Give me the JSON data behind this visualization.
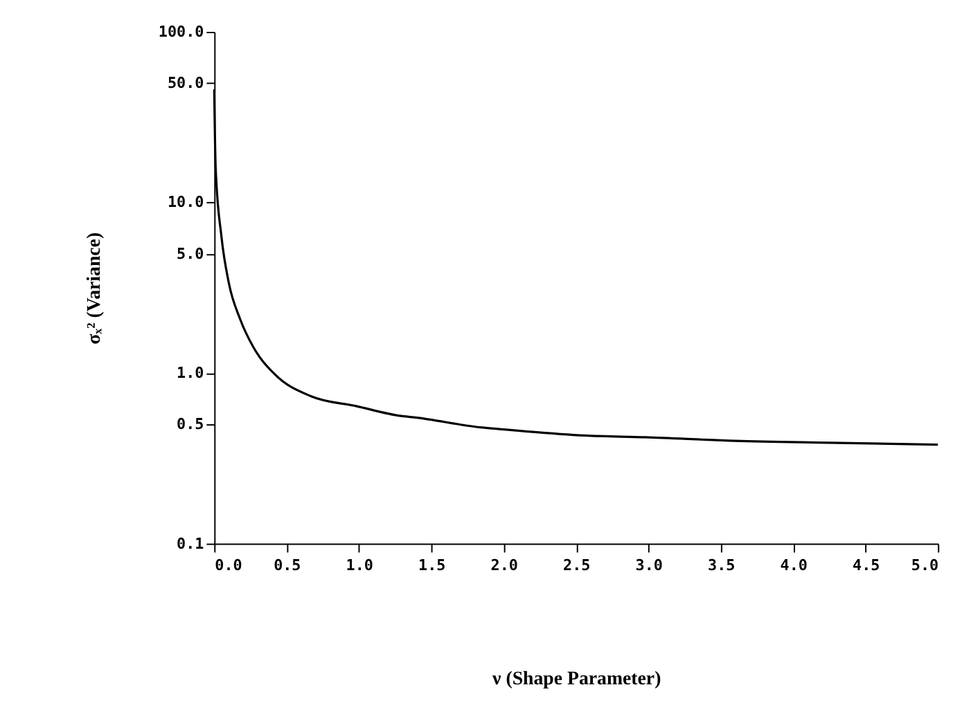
{
  "chart_data": {
    "type": "line",
    "xlabel": "ν (Shape Parameter)",
    "ylabel": "σₓ² (Variance)",
    "x": [
      0.0,
      0.01,
      0.05,
      0.1,
      0.18,
      0.27,
      0.42,
      0.67,
      0.98,
      1.29,
      1.38,
      1.84,
      1.96,
      2.56,
      2.98,
      3.6,
      4.25,
      5.0
    ],
    "series": [
      {
        "color": "#000000",
        "values": [
          46,
          15.9,
          6.3,
          3.4,
          2.06,
          1.42,
          0.98,
          0.73,
          0.64,
          0.56,
          0.55,
          0.48,
          0.47,
          0.43,
          0.42,
          0.4,
          0.39,
          0.38
        ]
      }
    ],
    "log": "y",
    "xlim": [
      0,
      5
    ],
    "ylim": [
      0.1,
      100
    ],
    "xticks": [
      {
        "value": 0,
        "label": "0.0"
      },
      0.5,
      {
        "value": 1,
        "label": "1.0"
      },
      1.5,
      {
        "value": 2,
        "label": "2.0"
      },
      2.5,
      {
        "value": 3,
        "label": "3.0"
      },
      3.5,
      {
        "value": 4,
        "label": "4.0"
      },
      4.5,
      {
        "value": 5,
        "label": "5.0"
      }
    ],
    "yticks": [
      0.1,
      0.5,
      {
        "value": 1,
        "label": "1.0"
      },
      {
        "value": 5,
        "label": "5.0"
      },
      {
        "value": 10,
        "label": "10.0"
      },
      {
        "value": 50,
        "label": "50.0"
      },
      {
        "value": 100,
        "label": "100.0"
      }
    ],
    "grid": false,
    "marker": "none",
    "line_style": "solid"
  }
}
